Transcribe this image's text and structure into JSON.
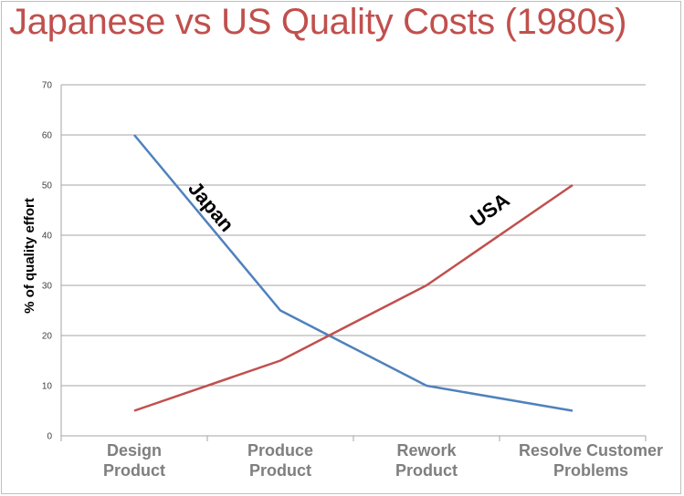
{
  "title": "Japanese vs US Quality Costs (1980s)",
  "colors": {
    "title": "#c0504d",
    "japan": "#4f81bd",
    "usa": "#c0504d",
    "grid": "#a6a6a6",
    "tick_x": "#7f7f7f"
  },
  "chart_data": {
    "type": "line",
    "title": "Japanese vs US Quality Costs (1980s)",
    "xlabel": "",
    "ylabel": "% of quality effort",
    "ylim": [
      0,
      70
    ],
    "yticks": [
      0,
      10,
      20,
      30,
      40,
      50,
      60,
      70
    ],
    "grid": true,
    "categories": [
      [
        "Design",
        "Product"
      ],
      [
        "Produce",
        "Product"
      ],
      [
        "Rework",
        "Product"
      ],
      [
        "Resolve Customer",
        "Problems"
      ]
    ],
    "series": [
      {
        "name": "Japan",
        "values": [
          60,
          25,
          10,
          5
        ]
      },
      {
        "name": "USA",
        "values": [
          5,
          15,
          30,
          50
        ]
      }
    ],
    "annotations": [
      "Japan",
      "USA"
    ]
  }
}
